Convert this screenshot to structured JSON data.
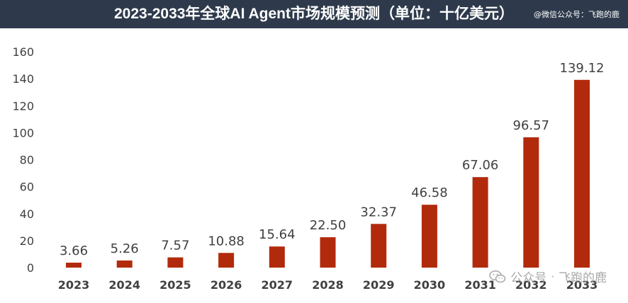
{
  "header": {
    "title": "2023-2033年全球AI Agent市场规模预测（单位：十亿美元）",
    "watermark_top": "@微信公众号：飞跑的鹿"
  },
  "watermark_bottom": {
    "account_label": "公众号",
    "separator": "·",
    "account_name": "飞跑的鹿",
    "icon": "wechat-icon"
  },
  "colors": {
    "bar": "#b22a0c",
    "title_bar": "#2e3a4c",
    "axis_text": "#404040",
    "label_text": "#404040"
  },
  "chart_data": {
    "type": "bar",
    "categories": [
      "2023",
      "2024",
      "2025",
      "2026",
      "2027",
      "2028",
      "2029",
      "2030",
      "2031",
      "2032",
      "2033"
    ],
    "values": [
      3.66,
      5.26,
      7.57,
      10.88,
      15.64,
      22.5,
      32.37,
      46.58,
      67.06,
      96.57,
      139.12
    ],
    "value_labels": [
      "3.66",
      "5.26",
      "7.57",
      "10.88",
      "15.64",
      "22.50",
      "32.37",
      "46.58",
      "67.06",
      "96.57",
      "139.12"
    ],
    "ylim": [
      0,
      160
    ],
    "yticks": [
      "0",
      "20",
      "40",
      "60",
      "80",
      "100",
      "120",
      "140",
      "160"
    ],
    "grid": false,
    "legend": "none",
    "xlabel": "",
    "ylabel": ""
  }
}
